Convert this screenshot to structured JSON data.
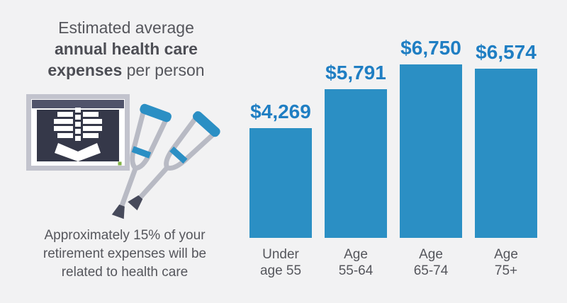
{
  "panel": {
    "title": {
      "line1": "Estimated average",
      "line2_bold": "annual health care",
      "line3_bold": "expenses",
      "line3_rest": " per person"
    },
    "note": "Approximately 15% of your retirement expenses will be related to health care"
  },
  "illustrations": [
    "xray-scan",
    "crutches"
  ],
  "chart_data": {
    "type": "bar",
    "title": "Estimated average annual health care expenses per person",
    "categories": [
      [
        "Under",
        "age 55"
      ],
      [
        "Age",
        "55-64"
      ],
      [
        "Age",
        "65-74"
      ],
      [
        "Age",
        "75+"
      ]
    ],
    "values": [
      4269,
      5791,
      6750,
      6574
    ],
    "value_labels": [
      "$4,269",
      "$5,791",
      "$6,750",
      "$6,574"
    ],
    "xlabel": "",
    "ylabel": "",
    "ylim": [
      0,
      6750
    ],
    "grid": false,
    "legend": false,
    "bar_color": "#2b8fc4",
    "value_label_color": "#1f7ec3"
  },
  "colors": {
    "background": "#f2f2f3",
    "text_gray": "#55565c",
    "bar_blue": "#2b8fc4",
    "value_blue": "#1f7ec3",
    "illustration_gray": "#c2c3cd",
    "screen_navy": "#353849",
    "header_slate": "#50536a",
    "foot_dark": "#474a5b",
    "led_green": "#7fb043"
  }
}
